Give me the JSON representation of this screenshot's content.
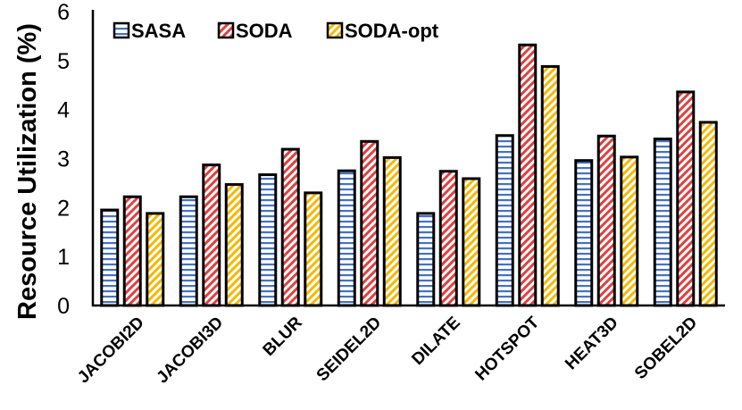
{
  "chart_data": {
    "type": "bar",
    "title": "",
    "xlabel": "",
    "ylabel": "Resource Utilization (%)",
    "ylim": [
      0,
      6
    ],
    "yticks": [
      "0",
      "1",
      "2",
      "3",
      "4",
      "5",
      "6"
    ],
    "grid": false,
    "legend": "top-left",
    "categories": [
      "JACOBI2D",
      "JACOBI3D",
      "BLUR",
      "SEIDEL2D",
      "DILATE",
      "HOTSPOT",
      "HEAT3D",
      "SOBEL2D"
    ],
    "series": [
      {
        "name": "SASA",
        "pattern": "horizontal-stripes",
        "color": "#4472C4",
        "values": [
          1.95,
          2.22,
          2.67,
          2.75,
          1.88,
          3.47,
          2.96,
          3.4
        ]
      },
      {
        "name": "SODA",
        "pattern": "diagonal-stripes",
        "color": "#E04040",
        "values": [
          2.22,
          2.87,
          3.19,
          3.35,
          2.74,
          5.32,
          3.46,
          4.36
        ]
      },
      {
        "name": "SODA-opt",
        "pattern": "diagonal-stripes",
        "color": "#F5B800",
        "values": [
          1.88,
          2.47,
          2.3,
          3.02,
          2.59,
          4.88,
          3.03,
          3.74
        ]
      }
    ]
  }
}
